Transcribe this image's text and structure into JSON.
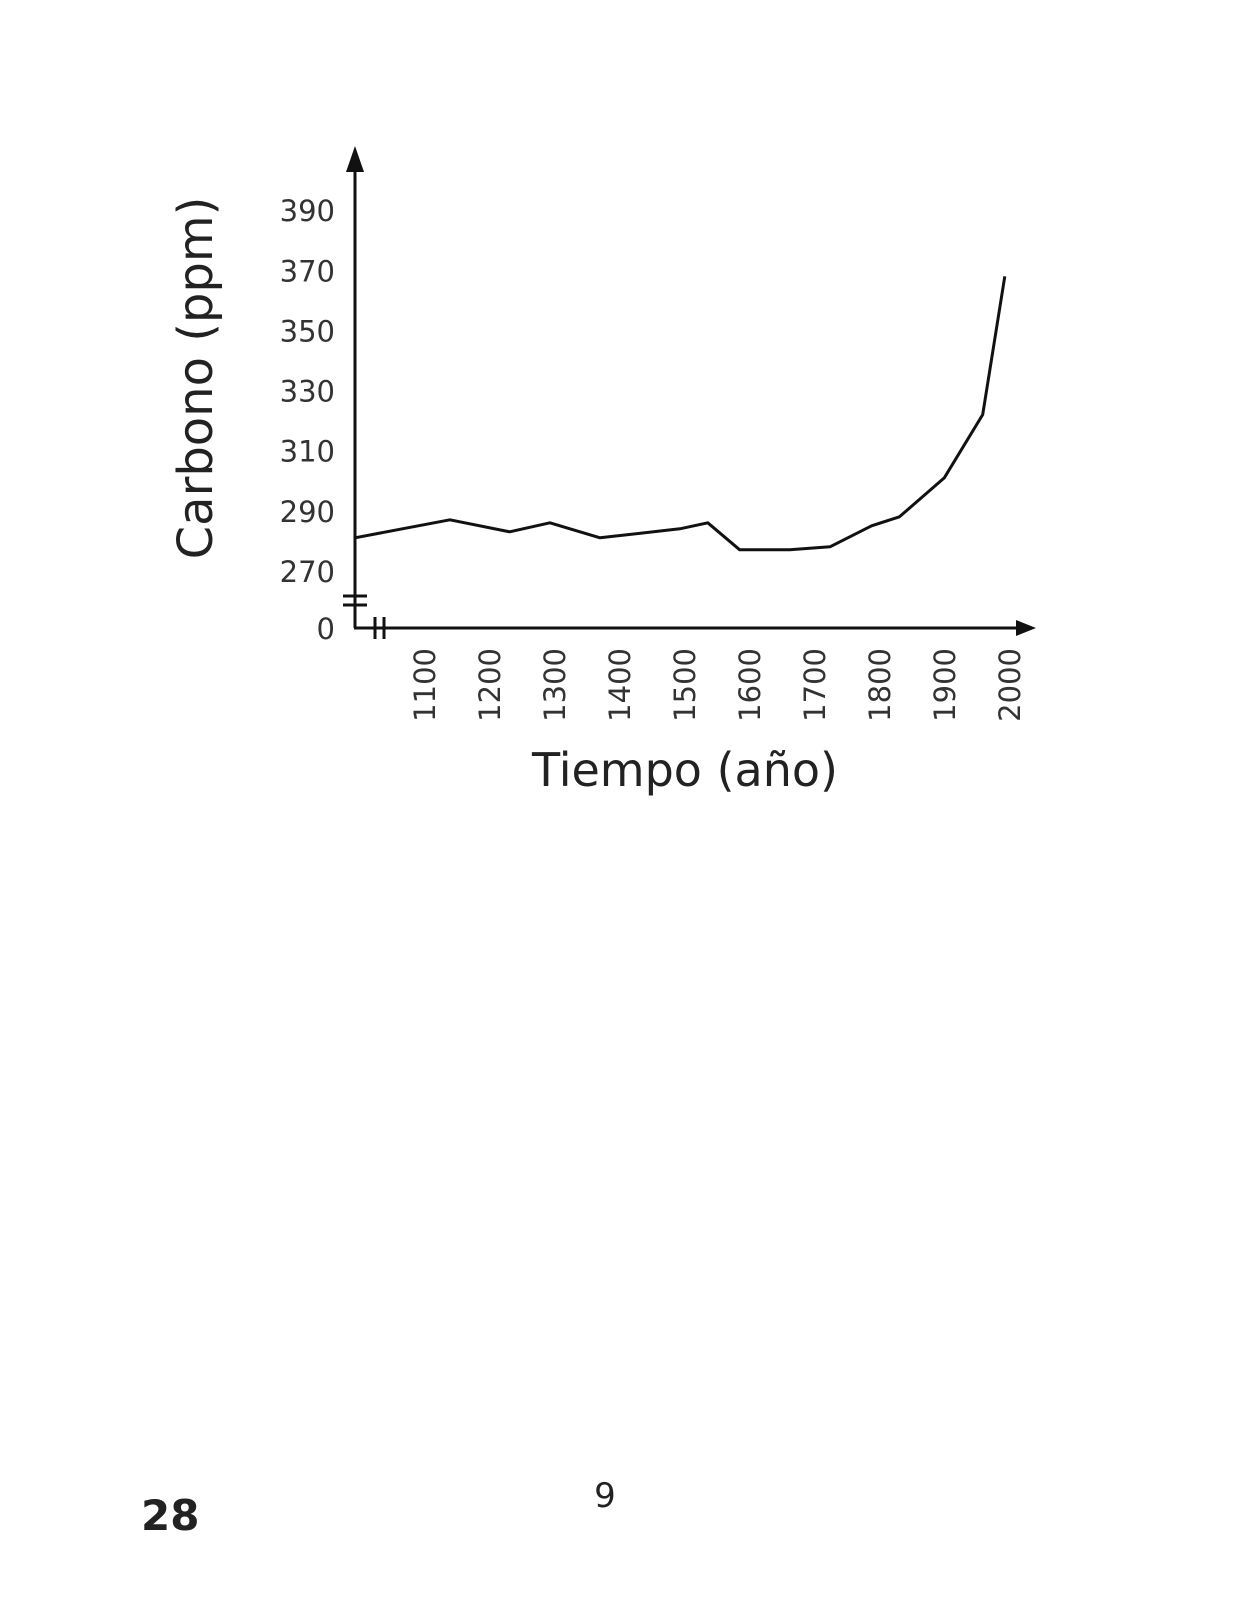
{
  "chart_data": {
    "type": "line",
    "x_label": "Tiempo (año)",
    "y_label": "Carbono (ppm)",
    "x": [
      992,
      1138,
      1230,
      1292,
      1369,
      1492,
      1535,
      1584,
      1661,
      1723,
      1787,
      1830,
      1899,
      1958,
      1992
    ],
    "values": [
      281,
      287,
      283,
      286,
      281,
      284,
      286,
      277,
      277,
      278,
      285,
      288,
      301,
      322,
      368
    ],
    "color": "#111111",
    "xlim": [
      992,
      2040
    ],
    "xticks": [
      1100,
      1200,
      1300,
      1400,
      1500,
      1600,
      1700,
      1800,
      1900,
      2000
    ],
    "ylim": [
      251,
      410
    ],
    "yticks": [
      0,
      270,
      290,
      310,
      330,
      350,
      370,
      390
    ],
    "axis_break": true
  },
  "page": {
    "page_number": "28",
    "footer_number": "9"
  }
}
